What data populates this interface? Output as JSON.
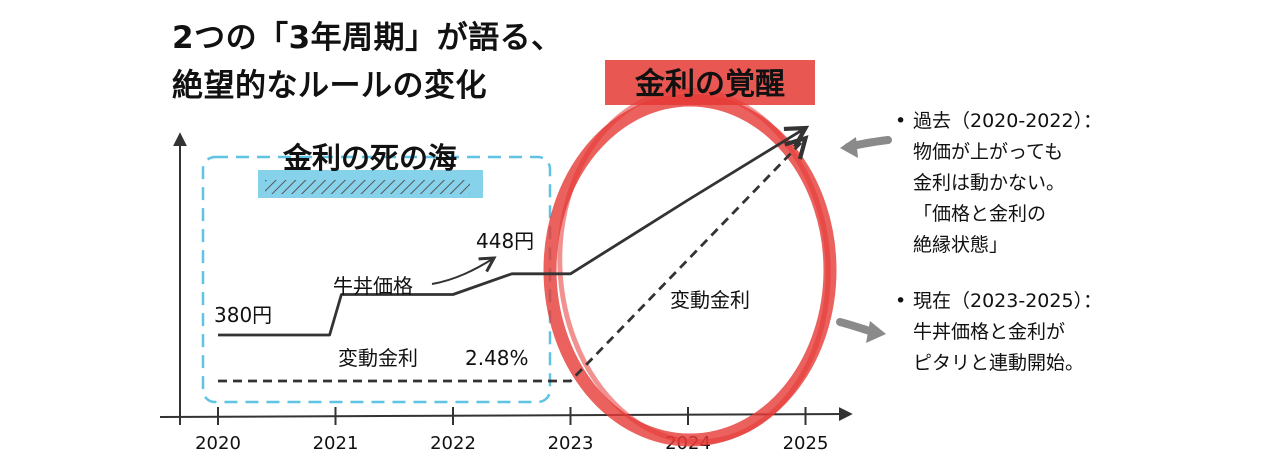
{
  "title": {
    "line1": "2つの「3年周期」が語る、",
    "line2": "絶望的なルールの変化"
  },
  "chart_data": {
    "type": "line",
    "x": [
      2020,
      2021,
      2022,
      2023,
      2024,
      2025
    ],
    "xticks": [
      "2020",
      "2021",
      "2022",
      "2023",
      "2024",
      "2025"
    ],
    "series": [
      {
        "name": "牛丼価格",
        "style": "solid",
        "color": "#333333",
        "points": [
          [
            2020,
            380
          ],
          [
            2020.95,
            380
          ],
          [
            2021.05,
            425
          ],
          [
            2022.0,
            425
          ],
          [
            2022.5,
            448
          ],
          [
            2023.0,
            448
          ],
          [
            2024.0,
            530
          ],
          [
            2025.0,
            610
          ]
        ]
      },
      {
        "name": "変動金利",
        "style": "dashed",
        "color": "#333333",
        "points": [
          [
            2020,
            2.48
          ],
          [
            2023.0,
            2.48
          ],
          [
            2025.0,
            9.3
          ]
        ]
      }
    ],
    "regions": [
      {
        "label": "金利の死の海",
        "x_start": 2020,
        "x_end": 2023,
        "color": "#5fc3e4"
      },
      {
        "label": "金利の覚醒",
        "x_start": 2023,
        "x_end": 2025,
        "color": "#e53935"
      }
    ],
    "annotations": {
      "price_start": "380円",
      "price_mid": "448円",
      "price_series_label": "牛丼価格",
      "rate_series_label": "変動金利",
      "rate_value": "2.48%",
      "rate_label_right": "変動金利"
    },
    "xlabel": "",
    "ylabel": "",
    "grid": false
  },
  "notes": [
    {
      "lines": [
        "過去（2020-2022）：",
        "物価が上がっても",
        "金利は動かない。",
        "「価格と金利の",
        "絶縁状態」"
      ]
    },
    {
      "lines": [
        "現在（2023-2025）：",
        "牛丼価格と金利が",
        "ピタリと連動開始。"
      ]
    }
  ],
  "bullet": "•",
  "colors": {
    "ink": "#333333",
    "sea_blue": "#5fc3e4",
    "awake_red": "#e53935",
    "arrow_grey": "#8a8a8a"
  }
}
